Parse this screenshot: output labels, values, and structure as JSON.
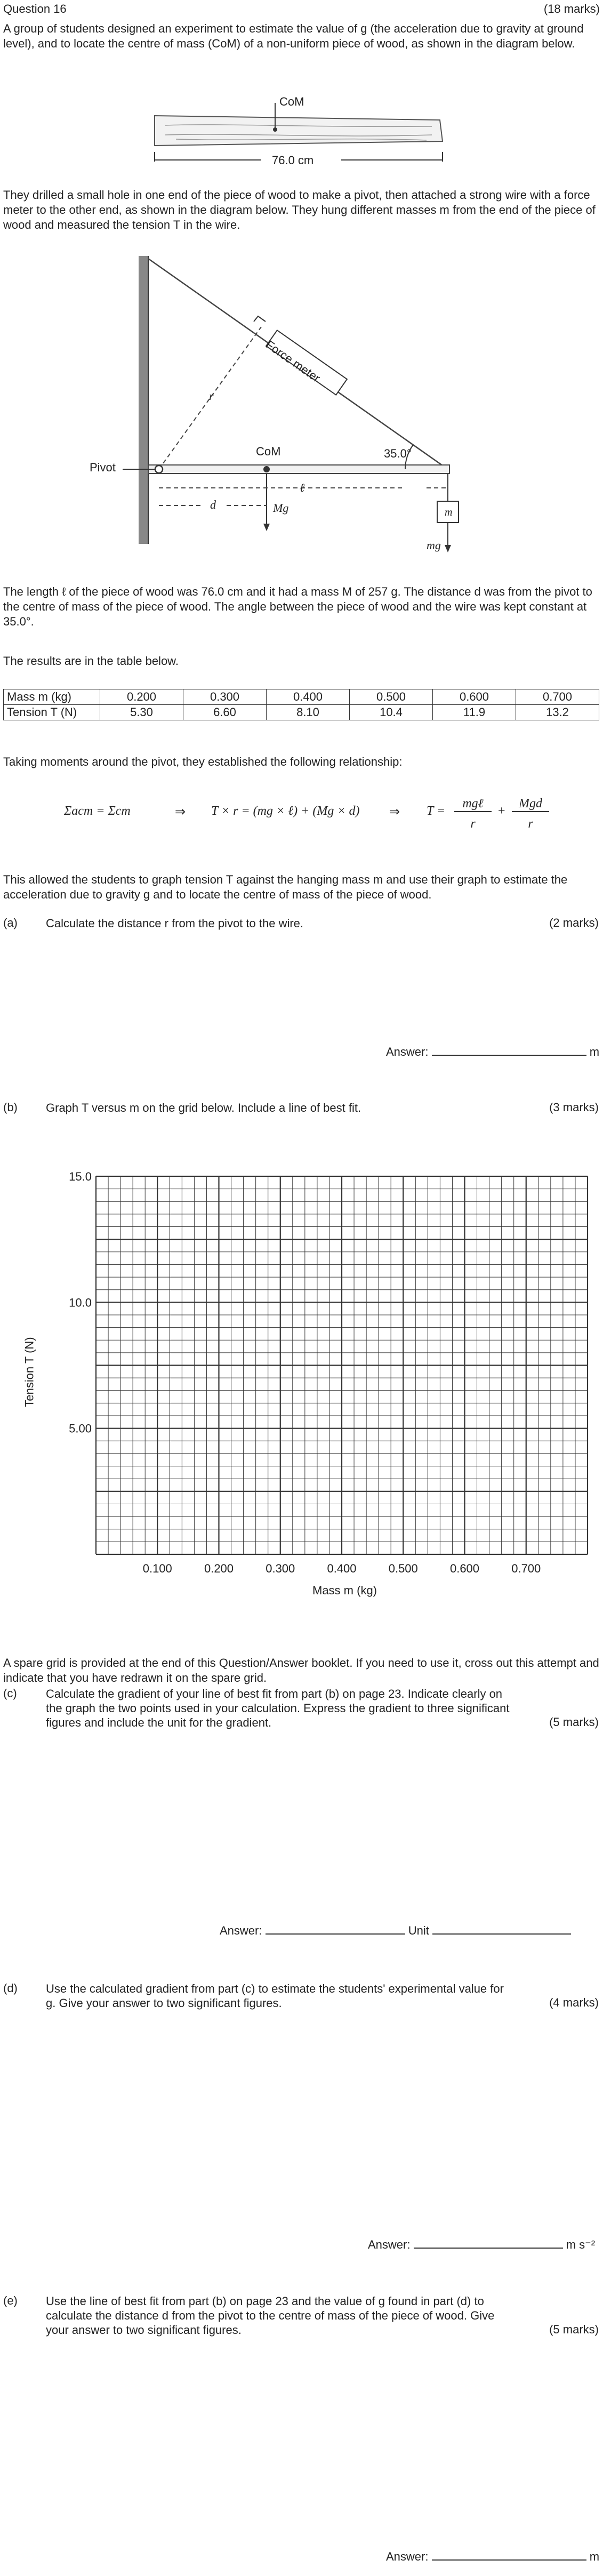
{
  "header": {
    "question": "Question 16",
    "marks": "(18 marks)"
  },
  "intro": "A group of students designed an experiment to estimate the value of g (the acceleration due to gravity at ground level), and to locate the centre of mass (CoM) of a non-uniform piece of wood, as shown in the diagram below.",
  "diagram1": {
    "com_label": "CoM",
    "length_label": "76.0 cm"
  },
  "para2": "They drilled a small hole in one end of the piece of wood to make a pivot, then attached a strong wire with a force meter to the other end, as shown in the diagram below. They hung different masses m from the end of the piece of wood and measured the tension T in the wire.",
  "diagram2": {
    "pivot": "Pivot",
    "com": "CoM",
    "force_meter": "Force meter",
    "angle": "35.0°",
    "r": "r",
    "l": "ℓ",
    "d": "d",
    "Mg": "Mg",
    "m": "m",
    "mg": "mg"
  },
  "para3": "The length ℓ of the piece of wood was 76.0 cm and it had a mass M of 257 g. The distance d was from the pivot to the centre of mass of the piece of wood. The angle between the piece of wood and the wire was kept constant at 35.0°.",
  "para4": "The results are in the table below.",
  "table": {
    "row1_label": "Mass m (kg)",
    "row2_label": "Tension T (N)",
    "mass": [
      "0.200",
      "0.300",
      "0.400",
      "0.500",
      "0.600",
      "0.700"
    ],
    "tension": [
      "5.30",
      "6.60",
      "8.10",
      "10.4",
      "11.9",
      "13.2"
    ]
  },
  "para5": "Taking moments around the pivot, they established the following relationship:",
  "equation": {
    "part1": "Σacm = Σcm",
    "arrow": "⇒",
    "part2": "T × r = (mg × ℓ) + (Mg × d)",
    "part3_lhs": "T =",
    "frac1_num": "mgℓ",
    "frac1_den": "r",
    "plus": "+",
    "frac2_num": "Mgd",
    "frac2_den": "r"
  },
  "para6": "This allowed the students to graph tension T against the hanging mass m and use their graph to estimate the acceleration due to gravity g and to locate the centre of mass of the piece of wood.",
  "part_a": {
    "letter": "(a)",
    "text": "Calculate the distance r from the pivot to the wire.",
    "marks": "(2 marks)",
    "answer": "Answer:",
    "unit": "m"
  },
  "part_b": {
    "letter": "(b)",
    "text": "Graph T versus m on the grid below. Include a line of best fit.",
    "marks": "(3 marks)"
  },
  "chart_data": {
    "type": "scatter",
    "title": "",
    "xlabel": "Mass m (kg)",
    "ylabel": "Tension T (N)",
    "xlim": [
      0,
      0.8
    ],
    "ylim": [
      0,
      15
    ],
    "x_ticks": [
      "0.100",
      "0.200",
      "0.300",
      "0.400",
      "0.500",
      "0.600",
      "0.700"
    ],
    "y_ticks": [
      "5.00",
      "10.0",
      "15.0"
    ],
    "x_tick_values": [
      0.1,
      0.2,
      0.3,
      0.4,
      0.5,
      0.6,
      0.7
    ],
    "y_tick_values": [
      5,
      10,
      15
    ],
    "grid": true,
    "series": []
  },
  "spare_note": "A spare grid is provided at the end of this Question/Answer booklet. If you need to use it, cross out this attempt and indicate that you have redrawn it on the spare grid.",
  "part_c": {
    "letter": "(c)",
    "text": "Calculate the gradient of your line of best fit from part (b) on page 23. Indicate clearly on the graph the two points used in your calculation. Express the gradient to three significant figures and include the unit for the gradient.",
    "marks": "(5 marks)",
    "answer": "Answer:",
    "unit_label": "Unit"
  },
  "part_d": {
    "letter": "(d)",
    "text": "Use the calculated gradient from part (c) to estimate the students' experimental value for g. Give your answer to two significant figures.",
    "marks": "(4 marks)",
    "answer": "Answer:",
    "unit": "m s⁻²"
  },
  "part_e": {
    "letter": "(e)",
    "text": "Use the line of best fit from part (b) on page 23 and the value of g found in part (d) to calculate the distance d from the pivot to the centre of mass of the piece of wood. Give your answer to two significant figures.",
    "marks": "(5 marks)",
    "answer": "Answer:",
    "unit": "m"
  }
}
